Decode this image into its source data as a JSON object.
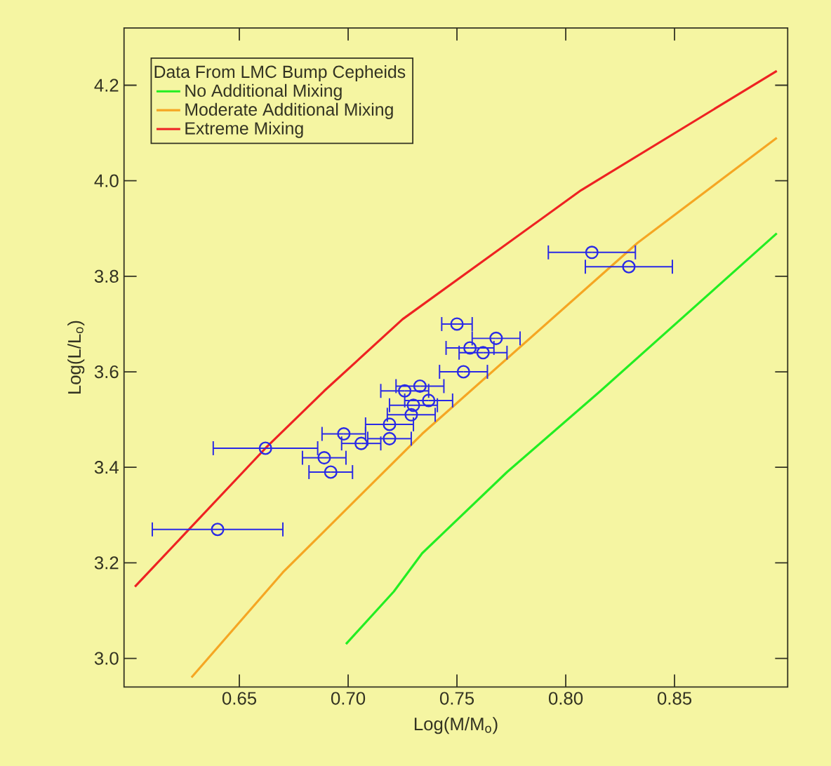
{
  "chart_data": {
    "type": "line",
    "xlabel": "Log(M/M$_{o}$)",
    "ylabel": "Log(L/L$_{o}$)",
    "legend_title": "Data From LMC Bump Cepheids",
    "legend": "top left",
    "grid": false,
    "xlim": [
      0.597,
      0.902
    ],
    "ylim": [
      2.94,
      4.32
    ],
    "xticks": [
      0.65,
      {
        "value": 0.7,
        "label": "0.70"
      },
      0.75,
      {
        "value": 0.8,
        "label": "0.80"
      },
      0.85
    ],
    "yticks": [
      {
        "value": 3.0,
        "label": "3.0"
      },
      3.2,
      3.4,
      3.6,
      3.8,
      {
        "value": 4.0,
        "label": "4.0"
      },
      4.2
    ],
    "series": [
      {
        "name": "No Additional Mixing",
        "color": "#22ee22",
        "x": [
          0.699,
          0.721,
          0.734,
          0.773,
          0.816,
          0.897
        ],
        "values": [
          3.03,
          3.14,
          3.22,
          3.39,
          3.56,
          3.89
        ]
      },
      {
        "name": "Moderate Additional Mixing",
        "color": "#f5a623",
        "x": [
          0.628,
          0.67,
          0.734,
          0.833,
          0.897
        ],
        "values": [
          2.96,
          3.18,
          3.47,
          3.87,
          4.09
        ]
      },
      {
        "name": "Extreme Mixing",
        "color": "#ee2222",
        "x": [
          0.602,
          0.662,
          0.689,
          0.725,
          0.807,
          0.897
        ],
        "values": [
          3.15,
          3.44,
          3.56,
          3.71,
          3.98,
          4.23
        ]
      },
      {
        "color": "#2a2ae6",
        "type": "scatter",
        "marker": "circle",
        "x": [
          0.64,
          0.662,
          0.689,
          0.692,
          0.698,
          0.706,
          0.719,
          0.719,
          0.726,
          0.733,
          0.737,
          0.73,
          0.729,
          0.75,
          0.768,
          0.756,
          0.762,
          0.753,
          0.812,
          0.829
        ],
        "values": [
          3.27,
          3.44,
          3.42,
          3.39,
          3.47,
          3.45,
          3.46,
          3.49,
          3.56,
          3.57,
          3.54,
          3.53,
          3.51,
          3.7,
          3.67,
          3.65,
          3.64,
          3.6,
          3.85,
          3.82
        ],
        "xerrors": [
          0.03,
          0.024,
          0.01,
          0.01,
          0.01,
          0.009,
          0.01,
          0.011,
          0.011,
          0.011,
          0.011,
          0.011,
          0.011,
          0.007,
          0.011,
          0.011,
          0.011,
          0.011,
          0.02,
          0.02
        ]
      }
    ]
  }
}
